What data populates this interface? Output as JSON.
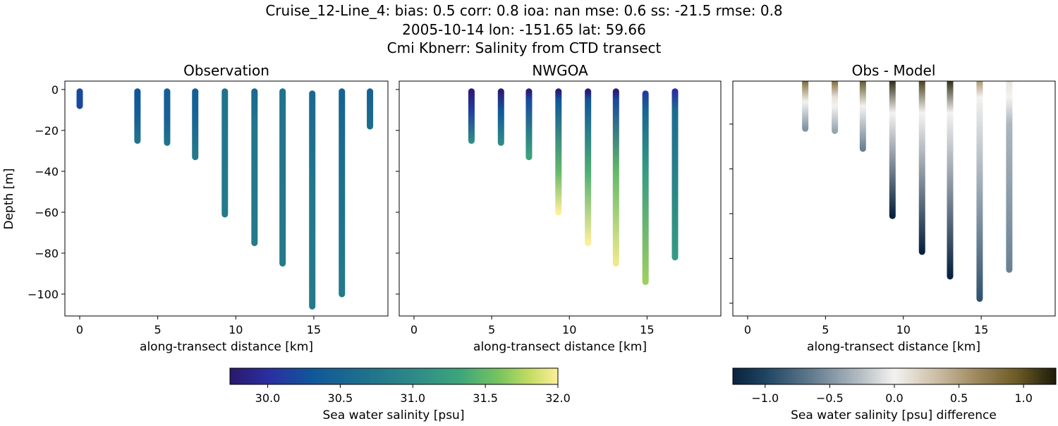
{
  "chart_data": {
    "type": "scatter",
    "title_lines": [
      "Cruise_12-Line_4: bias: 0.5  corr: 0.8  ioa: nan  mse: 0.6  ss: -21.5  rmse: 0.8",
      "2005-10-14 lon: -151.65 lat: 59.66",
      "Cmi Kbnerr: Salinity from CTD transect"
    ],
    "panels": [
      {
        "title": "Observation",
        "xlabel": "along-transect distance [km]",
        "ylabel": "Depth [m]",
        "xlim": [
          -0.95,
          19.75
        ],
        "ylim": [
          -110.7,
          4.1
        ],
        "xticks": [
          "0",
          "5",
          "10",
          "15"
        ],
        "xtick_values": [
          0,
          5,
          10,
          15
        ],
        "yticks": [
          "0",
          "−20",
          "−40",
          "−60",
          "−80",
          "−100"
        ],
        "ytick_values": [
          0,
          -20,
          -40,
          -60,
          -80,
          -100
        ],
        "show_ytick_labels": true,
        "colormap": "haline",
        "profiles": [
          {
            "x": 0.0,
            "stops": [
              [
                -1,
                30.2
              ],
              [
                -8,
                30.2
              ]
            ]
          },
          {
            "x": 3.7,
            "stops": [
              [
                -1,
                30.3
              ],
              [
                -12,
                30.4
              ],
              [
                -25,
                30.7
              ]
            ]
          },
          {
            "x": 5.6,
            "stops": [
              [
                -1,
                30.4
              ],
              [
                -14,
                30.45
              ],
              [
                -26,
                30.7
              ]
            ]
          },
          {
            "x": 7.4,
            "stops": [
              [
                -1,
                30.4
              ],
              [
                -10,
                30.45
              ],
              [
                -33,
                30.8
              ]
            ]
          },
          {
            "x": 9.3,
            "stops": [
              [
                -1,
                30.7
              ],
              [
                -61,
                30.8
              ]
            ]
          },
          {
            "x": 11.2,
            "stops": [
              [
                -1,
                30.55
              ],
              [
                -20,
                30.75
              ],
              [
                -75,
                30.8
              ]
            ]
          },
          {
            "x": 13.0,
            "stops": [
              [
                -1,
                30.7
              ],
              [
                -85,
                30.8
              ]
            ]
          },
          {
            "x": 14.9,
            "stops": [
              [
                -2,
                30.55
              ],
              [
                -50,
                30.75
              ],
              [
                -106,
                30.8
              ]
            ]
          },
          {
            "x": 16.8,
            "stops": [
              [
                -1,
                30.45
              ],
              [
                -30,
                30.6
              ],
              [
                -100,
                30.8
              ]
            ]
          },
          {
            "x": 18.6,
            "stops": [
              [
                -1,
                30.45
              ],
              [
                -18,
                30.6
              ]
            ]
          }
        ]
      },
      {
        "title": "NWGOA",
        "xlabel": "along-transect distance [km]",
        "xlim": [
          -0.95,
          19.75
        ],
        "ylim": [
          -110.7,
          4.1
        ],
        "xticks": [
          "0",
          "5",
          "10",
          "15"
        ],
        "xtick_values": [
          0,
          5,
          10,
          15
        ],
        "ytick_values": [
          0,
          -20,
          -40,
          -60,
          -80,
          -100
        ],
        "show_ytick_labels": false,
        "colormap": "haline",
        "profiles": [
          {
            "x": 3.7,
            "stops": [
              [
                -1,
                29.8
              ],
              [
                -10,
                30.1
              ],
              [
                -25,
                31.0
              ]
            ]
          },
          {
            "x": 5.6,
            "stops": [
              [
                -1,
                29.8
              ],
              [
                -10,
                30.3
              ],
              [
                -26,
                31.0
              ]
            ]
          },
          {
            "x": 7.4,
            "stops": [
              [
                -1,
                29.8
              ],
              [
                -5,
                30.2
              ],
              [
                -33,
                31.3
              ]
            ]
          },
          {
            "x": 9.3,
            "stops": [
              [
                -1,
                29.8
              ],
              [
                -5,
                30.3
              ],
              [
                -40,
                31.5
              ],
              [
                -60,
                32.0
              ]
            ]
          },
          {
            "x": 11.2,
            "stops": [
              [
                -1,
                29.8
              ],
              [
                -5,
                30.3
              ],
              [
                -40,
                31.4
              ],
              [
                -75,
                32.0
              ]
            ]
          },
          {
            "x": 13.0,
            "stops": [
              [
                -1,
                29.8
              ],
              [
                -5,
                30.2
              ],
              [
                -40,
                31.5
              ],
              [
                -85,
                31.95
              ]
            ]
          },
          {
            "x": 14.9,
            "stops": [
              [
                -2,
                30.1
              ],
              [
                -10,
                30.5
              ],
              [
                -40,
                31.2
              ],
              [
                -94,
                31.7
              ]
            ]
          },
          {
            "x": 16.8,
            "stops": [
              [
                -1,
                30.0
              ],
              [
                -10,
                30.6
              ],
              [
                -82,
                31.2
              ]
            ]
          }
        ]
      },
      {
        "title": "Obs - Model",
        "xlabel": "along-transect distance [km]",
        "xlim": [
          -0.95,
          19.75
        ],
        "ylim": [
          -105.7,
          -0.8
        ],
        "xticks": [
          "0",
          "5",
          "10",
          "15"
        ],
        "xtick_values": [
          0,
          5,
          10,
          15
        ],
        "ytick_values": [
          -20,
          -40,
          -60,
          -80,
          -100
        ],
        "show_ytick_labels": false,
        "colormap": "diff",
        "profiles": [
          {
            "x": 3.7,
            "stops": [
              [
                0,
                0.9
              ],
              [
                -10,
                0.0
              ],
              [
                -22,
                -0.5
              ]
            ]
          },
          {
            "x": 5.6,
            "stops": [
              [
                0,
                0.9
              ],
              [
                -8,
                0.1
              ],
              [
                -12,
                0.0
              ],
              [
                -23,
                -0.4
              ]
            ]
          },
          {
            "x": 7.4,
            "stops": [
              [
                0,
                1.0
              ],
              [
                -12,
                0.0
              ],
              [
                -31,
                -0.6
              ]
            ]
          },
          {
            "x": 9.3,
            "stops": [
              [
                0,
                1.2
              ],
              [
                -15,
                0.0
              ],
              [
                -61,
                -1.25
              ]
            ]
          },
          {
            "x": 11.2,
            "stops": [
              [
                0,
                1.1
              ],
              [
                -15,
                0.0
              ],
              [
                -77,
                -1.25
              ]
            ]
          },
          {
            "x": 13.0,
            "stops": [
              [
                0,
                1.2
              ],
              [
                -15,
                0.0
              ],
              [
                -88,
                -1.25
              ]
            ]
          },
          {
            "x": 14.9,
            "stops": [
              [
                0,
                0.6
              ],
              [
                -8,
                0.0
              ],
              [
                -98,
                -0.9
              ]
            ]
          },
          {
            "x": 16.8,
            "stops": [
              [
                0,
                0.1
              ],
              [
                -8,
                0.0
              ],
              [
                -20,
                -0.3
              ],
              [
                -85,
                -0.6
              ]
            ]
          }
        ]
      }
    ],
    "colorbars": [
      {
        "label": "Sea water salinity [psu]",
        "range": [
          29.74,
          32.0
        ],
        "ticks": [
          "30.0",
          "30.5",
          "31.0",
          "31.5",
          "32.0"
        ],
        "tick_values": [
          30.0,
          30.5,
          31.0,
          31.5,
          32.0
        ],
        "colormap": "haline"
      },
      {
        "label": "Sea water salinity [psu] difference",
        "range": [
          -1.25,
          1.25
        ],
        "ticks": [
          "−1.0",
          "−0.5",
          "0.0",
          "0.5",
          "1.0"
        ],
        "tick_values": [
          -1.0,
          -0.5,
          0.0,
          0.5,
          1.0
        ],
        "colormap": "diff"
      }
    ],
    "colormaps": {
      "haline": [
        [
          0,
          "#2a186c"
        ],
        [
          0.12,
          "#2a2fa2"
        ],
        [
          0.25,
          "#10579a"
        ],
        [
          0.42,
          "#1f728c"
        ],
        [
          0.56,
          "#2e8a88"
        ],
        [
          0.7,
          "#3ca57c"
        ],
        [
          0.82,
          "#77c45e"
        ],
        [
          0.91,
          "#c0db62"
        ],
        [
          1,
          "#fdef9a"
        ]
      ],
      "diff": [
        [
          0,
          "#08233f"
        ],
        [
          0.1,
          "#1e4462"
        ],
        [
          0.25,
          "#647d90"
        ],
        [
          0.4,
          "#b8c0c6"
        ],
        [
          0.5,
          "#f4f2f0"
        ],
        [
          0.62,
          "#d0c2ab"
        ],
        [
          0.75,
          "#a08a60"
        ],
        [
          0.88,
          "#6b5a24"
        ],
        [
          1,
          "#1c1c0a"
        ]
      ]
    }
  }
}
